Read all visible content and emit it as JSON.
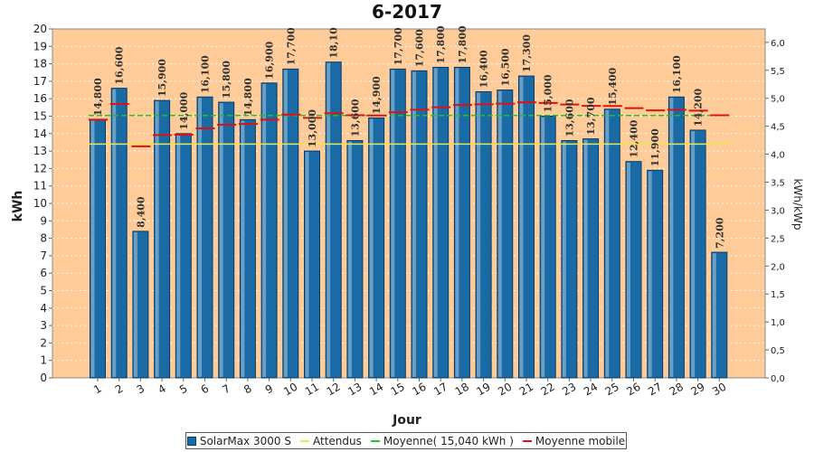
{
  "chart_data": {
    "type": "bar",
    "title": "6-2017",
    "xlabel": "Jour",
    "ylabel": "kWh",
    "y2label": "kWh/kWp",
    "ylim": [
      0,
      20
    ],
    "y2lim": [
      0,
      6.24
    ],
    "yticks": [
      "0",
      "1",
      "2",
      "3",
      "4",
      "5",
      "6",
      "7",
      "8",
      "9",
      "10",
      "11",
      "12",
      "13",
      "14",
      "15",
      "16",
      "17",
      "18",
      "19",
      "20"
    ],
    "y2ticks": [
      "0,0",
      "0,5",
      "1,0",
      "1,5",
      "2,0",
      "2,5",
      "3,0",
      "3,5",
      "4,0",
      "4,5",
      "5,0",
      "5,5",
      "6,0"
    ],
    "categories": [
      "1",
      "2",
      "3",
      "4",
      "5",
      "6",
      "7",
      "8",
      "9",
      "10",
      "11",
      "12",
      "13",
      "14",
      "15",
      "16",
      "17",
      "18",
      "19",
      "20",
      "21",
      "22",
      "23",
      "24",
      "25",
      "26",
      "27",
      "28",
      "29",
      "30"
    ],
    "series": [
      {
        "name": "SolarMax 3000 S",
        "values": [
          14.8,
          16.6,
          8.4,
          15.9,
          14.0,
          16.1,
          15.8,
          14.8,
          16.9,
          17.7,
          13.0,
          18.1,
          13.6,
          14.9,
          17.7,
          17.6,
          17.8,
          17.8,
          16.4,
          16.5,
          17.3,
          15.0,
          13.6,
          13.7,
          15.4,
          12.4,
          11.9,
          16.1,
          14.2,
          7.2
        ],
        "labels": [
          "14,800",
          "16,600",
          "8,400",
          "15,900",
          "14,000",
          "16,100",
          "15,800",
          "14,800",
          "16,900",
          "17,700",
          "13,000",
          "18,10",
          "13,600",
          "14,900",
          "17,700",
          "17,600",
          "17,800",
          "17,800",
          "16,400",
          "16,500",
          "17,300",
          "15,000",
          "13,600",
          "13,700",
          "15,400",
          "12,400",
          "11,900",
          "16,100",
          "14,200",
          "7,200"
        ]
      },
      {
        "name": "Attendus",
        "type": "line",
        "constant": 13.4
      },
      {
        "name": "Moyenne( 15,040 kWh )",
        "type": "line",
        "constant": 15.04
      },
      {
        "name": "Moyenne mobile",
        "type": "step",
        "values": [
          14.8,
          15.7,
          13.27,
          13.92,
          13.94,
          14.3,
          14.51,
          14.55,
          14.8,
          15.09,
          14.9,
          15.17,
          15.05,
          15.04,
          15.22,
          15.37,
          15.51,
          15.64,
          15.68,
          15.72,
          15.79,
          15.76,
          15.67,
          15.59,
          15.58,
          15.46,
          15.33,
          15.36,
          15.32,
          15.05
        ]
      }
    ],
    "colors": {
      "plot_bg": "#ffcc99",
      "bar": "#1a6aa6",
      "bar_dark": "#0a3a66",
      "attendus": "#e8e84a",
      "moyenne": "#22c022",
      "moyenne_mobile": "#e01010"
    },
    "grid": true,
    "legend": "bottom"
  }
}
